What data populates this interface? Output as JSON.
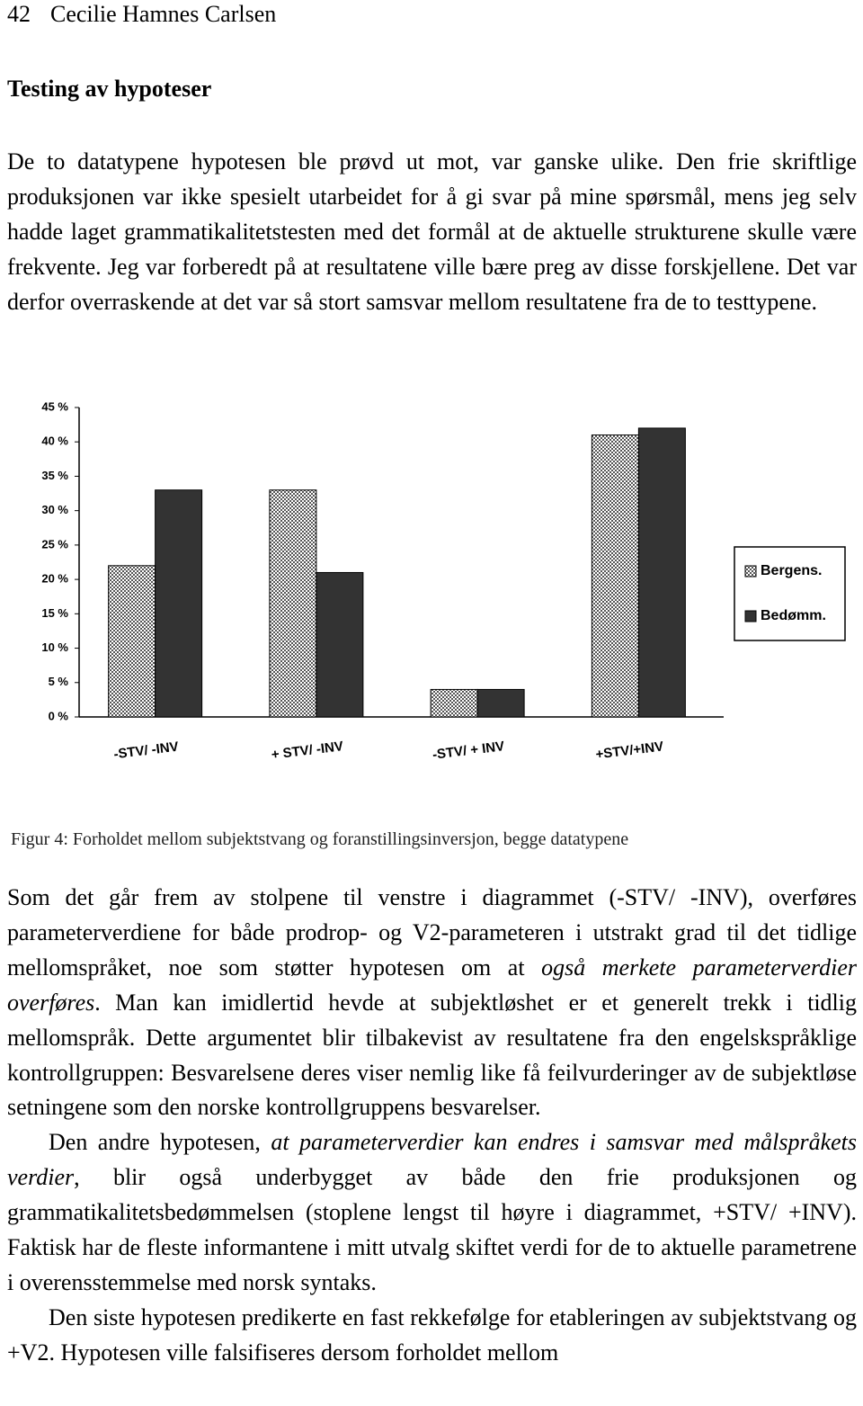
{
  "header": {
    "page_number": "42",
    "author": "Cecilie Hamnes Carlsen"
  },
  "heading": "Testing av hypoteser",
  "paragraphs_before": [
    [
      {
        "text": "De to datatypene hypotesen ble prøvd ut mot, var ganske ulike. Den frie skriftlige produksjonen var ikke spesielt utarbeidet for å gi svar på mine spørsmål, mens jeg selv hadde laget grammatikalitetstesten med det formål at de aktuelle strukturene skulle være frekvente. Jeg var forberedt på at resultatene ville bære preg av disse forskjellene. Det var derfor overraskende at det var så stort samsvar mellom resultatene fra de to testtypene.",
        "italic": false
      }
    ]
  ],
  "chart_data": {
    "type": "bar",
    "categories": [
      "-STV/ -INV",
      "+ STV/ -INV",
      "-STV/ + INV",
      "+STV/+INV"
    ],
    "series": [
      {
        "name": "Bergens.",
        "color": "#555555",
        "values": [
          22,
          33,
          4,
          41
        ]
      },
      {
        "name": "Bedømm.",
        "color": "#333333",
        "values": [
          33,
          21,
          4,
          42
        ]
      }
    ],
    "ylim": [
      0,
      45
    ],
    "yticks": [
      {
        "value": 0,
        "label": "0 %"
      },
      {
        "value": 5,
        "label": "5 %"
      },
      {
        "value": 10,
        "label": "10 %"
      },
      {
        "value": 15,
        "label": "15 %"
      },
      {
        "value": 20,
        "label": "20 %"
      },
      {
        "value": 25,
        "label": "25 %"
      },
      {
        "value": 30,
        "label": "30 %"
      },
      {
        "value": 35,
        "label": "35 %"
      },
      {
        "value": 40,
        "label": "40 %"
      },
      {
        "value": 45,
        "label": "45 %"
      }
    ],
    "grid": false,
    "legend": "right"
  },
  "caption": "Figur 4: Forholdet mellom subjektstvang og foranstillingsinversjon, begge datatypene",
  "paragraphs_after": [
    [
      {
        "text": "Som det går frem av stolpene til venstre i diagrammet (-STV/ -INV), overføres parameterverdiene for både prodrop- og V2-parameteren i utstrakt grad til det tidlige mellomspråket, noe som støtter hypotesen om at ",
        "italic": false
      },
      {
        "text": "også merkete parameterverdier overføres",
        "italic": true
      },
      {
        "text": ". Man kan imidlertid hevde at subjektløshet er et generelt trekk i tidlig mellomspråk. Dette argumentet blir tilbakevist av resultatene fra den engelskspråklige kontrollgruppen: Besvarelsene deres viser nemlig like få feilvurderinger av de subjektløse setningene som den norske kontrollgruppens besvarelser.",
        "italic": false
      }
    ],
    [
      {
        "text": "Den andre hypotesen, ",
        "italic": false
      },
      {
        "text": "at parameterverdier kan endres i samsvar med målspråkets verdier",
        "italic": true
      },
      {
        "text": ", blir også underbygget av både den frie produksjonen og grammatikalitetsbedømmelsen (stoplene lengst til høyre i diagrammet, +STV/ +INV). Faktisk har de fleste informantene i mitt utvalg skiftet verdi for de to aktuelle parametrene i overensstemmelse med norsk syntaks.",
        "italic": false
      }
    ],
    [
      {
        "text": "Den siste hypotesen predikerte en fast rekkefølge for etableringen av subjektstvang og +V2. Hypotesen ville falsifiseres dersom forholdet mellom",
        "italic": false
      }
    ]
  ]
}
